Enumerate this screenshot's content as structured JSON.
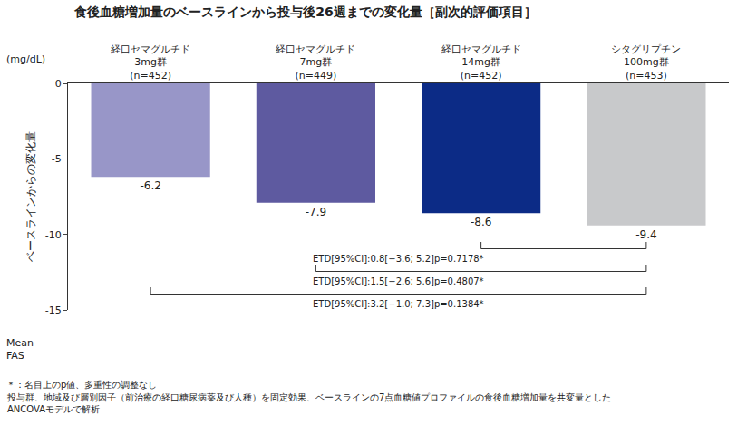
{
  "chart_data": {
    "type": "bar",
    "title": "食後血糖増加量のベースラインから投与後26週までの変化量［副次的評価項目］",
    "y_unit": "(mg/dL)",
    "y_label": "ベースラインからの変化量",
    "categories": [
      "経口セマグルチド\n3mg群\n(n=452)",
      "経口セマグルチド\n7mg群\n(n=449)",
      "経口セマグルチド\n14mg群\n(n=452)",
      "シタグリプチン\n100mg群\n(n=453)"
    ],
    "values": [
      -6.2,
      -7.9,
      -8.6,
      -9.4
    ],
    "colors": [
      "#9896c8",
      "#5e5aa0",
      "#0c2b86",
      "#c8c9cb"
    ],
    "data_labels": true,
    "ylim": [
      -15,
      0
    ],
    "yticks": [
      -15,
      -10,
      -5,
      0
    ],
    "grid": false,
    "comparisons": [
      {
        "text": "ETD[95%CI]:0.8[−3.6; 5.2]p=0.7178*",
        "between": [
          "経口セマグルチド\n14mg群\n(n=452)",
          "シタグリプチン\n100mg群\n(n=453)"
        ]
      },
      {
        "text": "ETD[95%CI]:1.5[−2.6; 5.6]p=0.4807*",
        "between": [
          "経口セマグルチド\n7mg群\n(n=449)",
          "シタグリプチン\n100mg群\n(n=453)"
        ]
      },
      {
        "text": "ETD[95%CI]:3.2[−1.0; 7.3]p=0.1384*",
        "between": [
          "経口セマグルチド\n3mg群\n(n=452)",
          "シタグリプチン\n100mg群\n(n=453)"
        ]
      }
    ],
    "stat_note": "Mean\nFAS",
    "footnotes": [
      "＊：名目上のp値、多重性の調整なし",
      "投与群、地域及び層別因子（前治療の経口糖尿病薬及び人種）を固定効果、ベースラインの7点血糖値プロファイルの食後血糖増加量を共変量とした\nANCOVAモデルで解析"
    ]
  }
}
